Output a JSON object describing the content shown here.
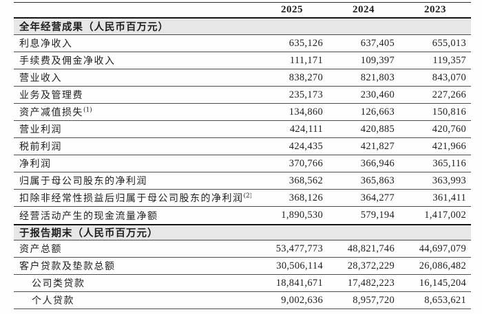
{
  "table": {
    "years": [
      "2025",
      "2024",
      "2023"
    ],
    "sections": [
      {
        "title": "全年经营成果（人民币百万元）",
        "rows": [
          {
            "label": "利息净收入",
            "values": [
              "635,126",
              "637,405",
              "655,013"
            ]
          },
          {
            "label": "手续费及佣金净收入",
            "values": [
              "111,171",
              "109,397",
              "119,357"
            ]
          },
          {
            "label": "营业收入",
            "values": [
              "838,270",
              "821,803",
              "843,070"
            ]
          },
          {
            "label": "业务及管理费",
            "values": [
              "235,173",
              "230,460",
              "227,266"
            ]
          },
          {
            "label": "资产减值损失",
            "sup": "(1)",
            "values": [
              "134,860",
              "126,663",
              "150,816"
            ]
          },
          {
            "label": "营业利润",
            "values": [
              "424,111",
              "420,885",
              "420,760"
            ]
          },
          {
            "label": "税前利润",
            "values": [
              "424,435",
              "421,827",
              "421,966"
            ]
          },
          {
            "label": "净利润",
            "values": [
              "370,766",
              "366,946",
              "365,116"
            ]
          },
          {
            "label": "归属于母公司股东的净利润",
            "values": [
              "368,562",
              "365,863",
              "363,993"
            ]
          },
          {
            "label": "扣除非经常性损益后归属于母公司股东的净利润",
            "sup": "(2)",
            "values": [
              "368,126",
              "364,277",
              "361,411"
            ]
          },
          {
            "label": "经营活动产生的现金流量净额",
            "values": [
              "1,890,530",
              "579,194",
              "1,417,002"
            ]
          }
        ]
      },
      {
        "title": "于报告期末（人民币百万元）",
        "rows": [
          {
            "label": "资产总额",
            "values": [
              "53,477,773",
              "48,821,746",
              "44,697,079"
            ]
          },
          {
            "label": "客户贷款及垫款总额",
            "values": [
              "30,506,114",
              "28,372,229",
              "26,086,482"
            ]
          },
          {
            "label": "公司类贷款",
            "indent": true,
            "values": [
              "18,841,671",
              "17,482,223",
              "16,145,204"
            ]
          },
          {
            "label": "个人贷款",
            "indent": true,
            "values": [
              "9,002,636",
              "8,957,720",
              "8,653,621"
            ]
          }
        ]
      }
    ]
  }
}
